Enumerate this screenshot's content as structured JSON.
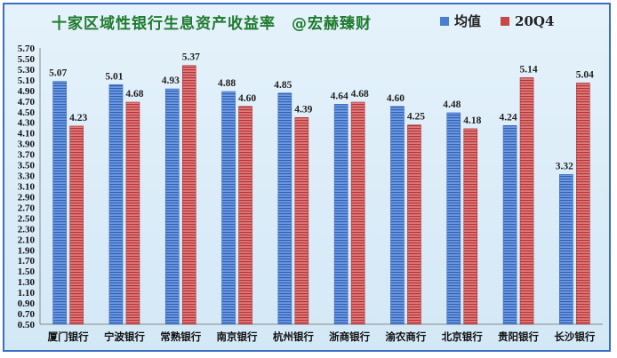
{
  "chart_data": {
    "type": "bar",
    "title": "十家区域性银行生息资产收益率　@宏赫臻财",
    "categories": [
      "厦门银行",
      "宁波银行",
      "常熟银行",
      "南京银行",
      "杭州银行",
      "浙商银行",
      "渝农商行",
      "北京银行",
      "贵阳银行",
      "长沙银行"
    ],
    "series": [
      {
        "name": "均值",
        "color": "#4a7ed0",
        "values": [
          5.07,
          5.01,
          4.93,
          4.88,
          4.85,
          4.64,
          4.6,
          4.48,
          4.24,
          3.32
        ]
      },
      {
        "name": "20Q4",
        "color": "#c8484a",
        "values": [
          4.23,
          4.68,
          5.37,
          4.6,
          4.39,
          4.68,
          4.25,
          4.18,
          5.14,
          5.04
        ]
      }
    ],
    "ylim": [
      0.5,
      5.7
    ],
    "ytick_step": 0.2,
    "grid": false,
    "legend_position": "top-right"
  }
}
